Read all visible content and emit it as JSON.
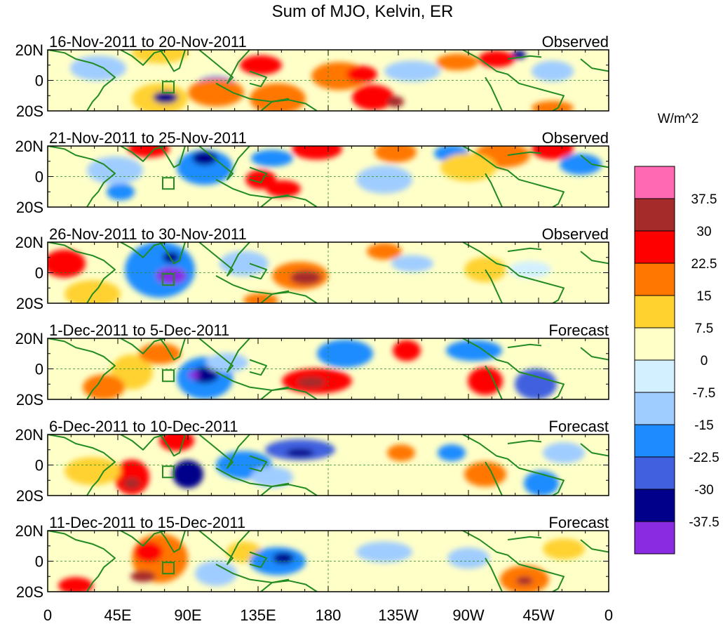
{
  "title": "Sum of MJO, Kelvin, ER",
  "panels": [
    {
      "left_label": "16-Nov-2011 to 20-Nov-2011",
      "right_label": "Observed"
    },
    {
      "left_label": "21-Nov-2011 to 25-Nov-2011",
      "right_label": "Observed"
    },
    {
      "left_label": "26-Nov-2011 to 30-Nov-2011",
      "right_label": "Observed"
    },
    {
      "left_label": "1-Dec-2011 to 5-Dec-2011",
      "right_label": "Forecast"
    },
    {
      "left_label": "6-Dec-2011 to 10-Dec-2011",
      "right_label": "Forecast"
    },
    {
      "left_label": "11-Dec-2011 to 15-Dec-2011",
      "right_label": "Forecast"
    }
  ],
  "lat_ticks": [
    "20N",
    "0",
    "20S"
  ],
  "lon_ticks": [
    "0",
    "45E",
    "90E",
    "135E",
    "180",
    "135W",
    "90W",
    "45W",
    "0"
  ],
  "colorbar": {
    "units": "W/m^2",
    "labels": [
      "37.5",
      "30",
      "22.5",
      "15",
      "7.5",
      "0",
      "-7.5",
      "-15",
      "-22.5",
      "-30",
      "-37.5"
    ],
    "colors": [
      "#ff69b4",
      "#a52a2a",
      "#ff0000",
      "#ff7700",
      "#ffd230",
      "#ffffc8",
      "#d2f0ff",
      "#a0cdff",
      "#1e8cff",
      "#4060e0",
      "#00008b",
      "#8a2be2"
    ]
  },
  "colors": {
    "coast": "#228b22",
    "grid": "#228b22"
  }
}
